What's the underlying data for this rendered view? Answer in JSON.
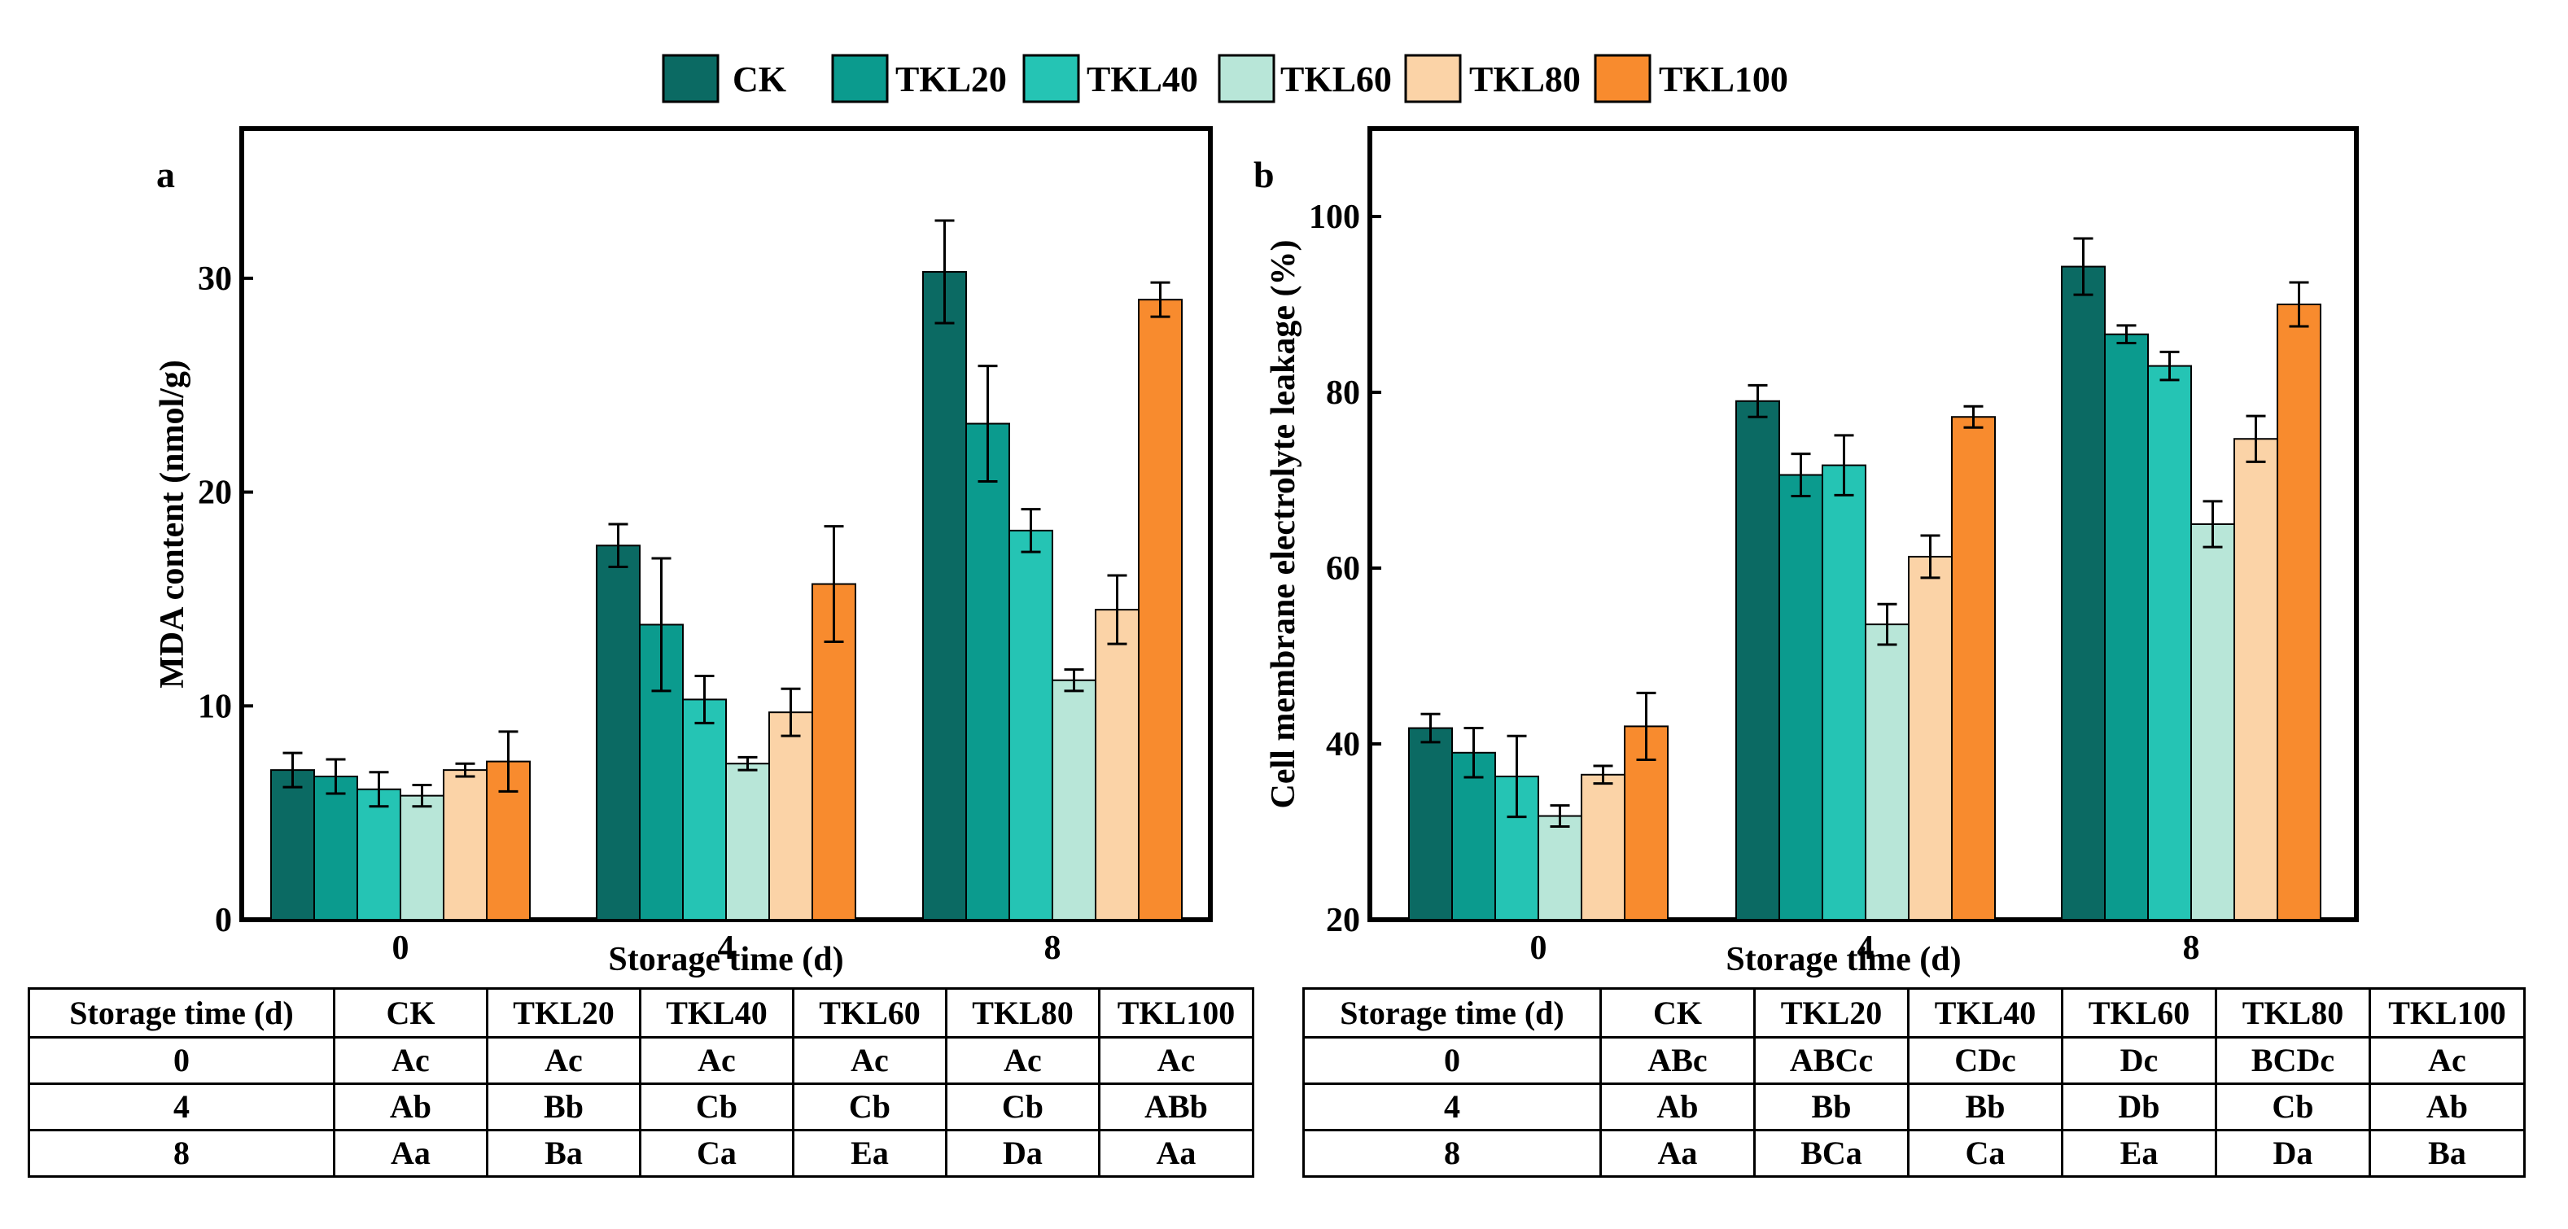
{
  "colors": {
    "CK": "#0b6a63",
    "TKL20": "#0b9b8e",
    "TKL40": "#25c4b4",
    "TKL60": "#b8e6d8",
    "TKL80": "#fbd3a7",
    "TKL100": "#f88b2e"
  },
  "legend": {
    "position": "top-center",
    "entries": [
      "CK",
      "TKL20",
      "TKL40",
      "TKL60",
      "TKL80",
      "TKL100"
    ]
  },
  "chart_data": [
    {
      "type": "bar",
      "panel_label": "a",
      "title": "",
      "xlabel": "Storage time (d)",
      "ylabel": "MDA content (nmol/g)",
      "categories": [
        "0",
        "4",
        "8"
      ],
      "ylim": [
        0,
        37
      ],
      "yticks": [
        0,
        10,
        20,
        30
      ],
      "grid": false,
      "series": [
        {
          "name": "CK",
          "values": [
            7.0,
            17.5,
            30.3
          ],
          "errors": [
            0.8,
            1.0,
            2.4
          ]
        },
        {
          "name": "TKL20",
          "values": [
            6.7,
            13.8,
            23.2
          ],
          "errors": [
            0.8,
            3.1,
            2.7
          ]
        },
        {
          "name": "TKL40",
          "values": [
            6.1,
            10.3,
            18.2
          ],
          "errors": [
            0.8,
            1.1,
            1.0
          ]
        },
        {
          "name": "TKL60",
          "values": [
            5.8,
            7.3,
            11.2
          ],
          "errors": [
            0.5,
            0.3,
            0.5
          ]
        },
        {
          "name": "TKL80",
          "values": [
            7.0,
            9.7,
            14.5
          ],
          "errors": [
            0.3,
            1.1,
            1.6
          ]
        },
        {
          "name": "TKL100",
          "values": [
            7.4,
            15.7,
            29.0
          ],
          "errors": [
            1.4,
            2.7,
            0.8
          ]
        }
      ],
      "table": {
        "header": [
          "Storage time (d)",
          "CK",
          "TKL20",
          "TKL40",
          "TKL60",
          "TKL80",
          "TKL100"
        ],
        "rows": [
          [
            "0",
            "Ac",
            "Ac",
            "Ac",
            "Ac",
            "Ac",
            "Ac"
          ],
          [
            "4",
            "Ab",
            "Bb",
            "Cb",
            "Cb",
            "Cb",
            "ABb"
          ],
          [
            "8",
            "Aa",
            "Ba",
            "Ca",
            "Ea",
            "Da",
            "Aa"
          ]
        ]
      }
    },
    {
      "type": "bar",
      "panel_label": "b",
      "title": "",
      "xlabel": "Storage time (d)",
      "ylabel": "Cell membrane electrolyte leakage (%)",
      "categories": [
        "0",
        "4",
        "8"
      ],
      "ylim": [
        20,
        110
      ],
      "yticks": [
        20,
        40,
        60,
        80,
        100
      ],
      "grid": false,
      "series": [
        {
          "name": "CK",
          "values": [
            41.8,
            79.0,
            94.3
          ],
          "errors": [
            1.6,
            1.8,
            3.2
          ]
        },
        {
          "name": "TKL20",
          "values": [
            39.0,
            70.6,
            86.6
          ],
          "errors": [
            2.8,
            2.4,
            1.0
          ]
        },
        {
          "name": "TKL40",
          "values": [
            36.3,
            71.7,
            83.0
          ],
          "errors": [
            4.6,
            3.4,
            1.6
          ]
        },
        {
          "name": "TKL60",
          "values": [
            31.8,
            53.6,
            65.0
          ],
          "errors": [
            1.2,
            2.3,
            2.6
          ]
        },
        {
          "name": "TKL80",
          "values": [
            36.5,
            61.3,
            74.7
          ],
          "errors": [
            1.0,
            2.4,
            2.6
          ]
        },
        {
          "name": "TKL100",
          "values": [
            42.0,
            77.2,
            90.0
          ],
          "errors": [
            3.8,
            1.2,
            2.5
          ]
        }
      ],
      "table": {
        "header": [
          "Storage time (d)",
          "CK",
          "TKL20",
          "TKL40",
          "TKL60",
          "TKL80",
          "TKL100"
        ],
        "rows": [
          [
            "0",
            "ABc",
            "ABCc",
            "CDc",
            "Dc",
            "BCDc",
            "Ac"
          ],
          [
            "4",
            "Ab",
            "Bb",
            "Bb",
            "Db",
            "Cb",
            "Ab"
          ],
          [
            "8",
            "Aa",
            "BCa",
            "Ca",
            "Ea",
            "Da",
            "Ba"
          ]
        ]
      }
    }
  ]
}
